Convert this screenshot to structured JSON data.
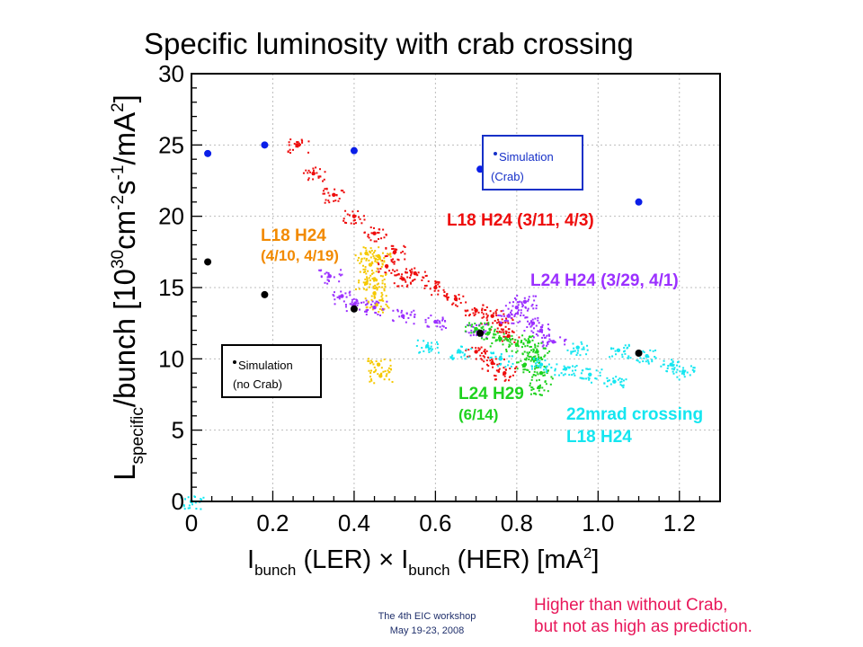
{
  "slide": {
    "title": "Specific luminosity with crab crossing",
    "footer_line1": "The 4th EIC workshop",
    "footer_line2": "May 19-23, 2008",
    "note_line1": "Higher than without Crab,",
    "note_line2": "but not as high as prediction."
  },
  "chart_data": {
    "type": "scatter",
    "xlabel_parts": [
      "I",
      "bunch",
      " (LER) × I",
      "bunch",
      " (HER) [mA",
      "2",
      "]"
    ],
    "ylabel_parts": [
      "L",
      "specific",
      "/bunch [10",
      "30",
      "cm",
      "-2",
      "s",
      "-1",
      "/mA",
      "2",
      "]"
    ],
    "xlim": [
      0,
      1.3
    ],
    "ylim": [
      0,
      30
    ],
    "xticks": [
      0,
      0.2,
      0.4,
      0.6,
      0.8,
      1.0,
      1.2
    ],
    "xtick_labels": [
      "0",
      "0.2",
      "0.4",
      "0.6",
      "0.8",
      "1.0",
      "1.2"
    ],
    "yticks": [
      0,
      5,
      10,
      15,
      20,
      25,
      30
    ],
    "ytick_labels": [
      "0",
      "5",
      "10",
      "15",
      "20",
      "25",
      "30"
    ],
    "grid": true,
    "simulation_crab": {
      "legend_line1": "Simulation",
      "legend_line2": "(Crab)",
      "color": "#0a1ee8",
      "points": [
        [
          0.04,
          24.4
        ],
        [
          0.18,
          25.0
        ],
        [
          0.4,
          24.6
        ],
        [
          0.71,
          23.3
        ],
        [
          1.1,
          21.0
        ]
      ]
    },
    "simulation_no_crab": {
      "legend_line1": "Simulation",
      "legend_line2": "(no Crab)",
      "color": "#000000",
      "points": [
        [
          0.04,
          16.8
        ],
        [
          0.18,
          14.5
        ],
        [
          0.4,
          13.5
        ],
        [
          0.71,
          11.8
        ],
        [
          1.1,
          10.4
        ]
      ]
    },
    "series": [
      {
        "name_line1": "L18 H24 (3/11, 4/3)",
        "name_line2": "",
        "color": "#ee0c0c",
        "points": [
          [
            0.26,
            25.0
          ],
          [
            0.3,
            23.0
          ],
          [
            0.35,
            21.5
          ],
          [
            0.4,
            20.0
          ],
          [
            0.45,
            18.8
          ],
          [
            0.5,
            17.5
          ],
          [
            0.55,
            16.0
          ],
          [
            0.6,
            15.0
          ],
          [
            0.65,
            14.2
          ],
          [
            0.7,
            13.4
          ],
          [
            0.74,
            13.0
          ],
          [
            0.76,
            12.4
          ],
          [
            0.78,
            11.6
          ],
          [
            0.48,
            16.5
          ],
          [
            0.52,
            15.6
          ],
          [
            0.7,
            10.5
          ],
          [
            0.74,
            9.7
          ],
          [
            0.77,
            9.0
          ]
        ]
      },
      {
        "name_line1": "L18 H24",
        "name_line2": "(4/10, 4/19)",
        "color": "#f5c800",
        "points": [
          [
            0.43,
            17.4
          ],
          [
            0.44,
            16.6
          ],
          [
            0.45,
            15.6
          ],
          [
            0.43,
            15.3
          ],
          [
            0.46,
            17.2
          ],
          [
            0.45,
            14.6
          ],
          [
            0.455,
            13.8
          ],
          [
            0.46,
            9.6
          ],
          [
            0.465,
            8.8
          ]
        ]
      },
      {
        "name_line1": "L24 H24 (3/29, 4/1)",
        "name_line2": "",
        "color": "#9b30ff",
        "points": [
          [
            0.34,
            15.8
          ],
          [
            0.37,
            14.4
          ],
          [
            0.4,
            13.8
          ],
          [
            0.45,
            13.6
          ],
          [
            0.52,
            13.0
          ],
          [
            0.6,
            12.6
          ],
          [
            0.7,
            12.0
          ],
          [
            0.78,
            13.0
          ],
          [
            0.8,
            13.6
          ],
          [
            0.82,
            14.0
          ],
          [
            0.84,
            12.5
          ],
          [
            0.86,
            12.0
          ],
          [
            0.89,
            11.2
          ]
        ]
      },
      {
        "name_line1": "L24 H29",
        "name_line2": "(6/14)",
        "color": "#1ed21e",
        "points": [
          [
            0.7,
            12.1
          ],
          [
            0.73,
            11.8
          ],
          [
            0.76,
            11.4
          ],
          [
            0.8,
            11.0
          ],
          [
            0.83,
            11.2
          ],
          [
            0.85,
            10.5
          ],
          [
            0.86,
            9.0
          ],
          [
            0.855,
            8.0
          ],
          [
            0.84,
            10.0
          ],
          [
            0.82,
            9.6
          ]
        ]
      },
      {
        "name_line1": "22mrad crossing",
        "name_line2": "L18 H24",
        "color": "#14e6f0",
        "points": [
          [
            0.0,
            0.0
          ],
          [
            0.58,
            10.9
          ],
          [
            0.66,
            10.5
          ],
          [
            0.76,
            10.0
          ],
          [
            0.86,
            9.6
          ],
          [
            0.92,
            9.3
          ],
          [
            0.98,
            8.9
          ],
          [
            1.04,
            8.4
          ],
          [
            0.95,
            10.8
          ],
          [
            1.05,
            10.6
          ],
          [
            1.12,
            10.2
          ],
          [
            1.18,
            9.6
          ],
          [
            1.21,
            9.1
          ]
        ]
      }
    ]
  }
}
